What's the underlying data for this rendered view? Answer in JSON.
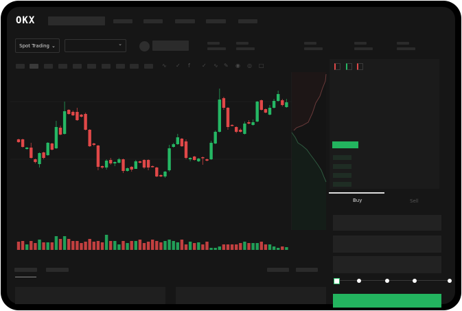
{
  "header": {
    "logo": "OKX"
  },
  "toolbar": {
    "spot_trading_label": "Spot Trading",
    "chevron": "chevron-down-icon"
  },
  "trade_form": {
    "tabs": [
      {
        "label": "Buy",
        "active": true
      },
      {
        "label": "Sell",
        "active": false
      }
    ],
    "slider_value_percent": 0
  },
  "colors": {
    "up": "#25b764",
    "down": "#e04848",
    "background": "#161616",
    "frame": "#000000",
    "panel": "#1b1b1b"
  },
  "chart_data": {
    "type": "candlestick",
    "title": "",
    "grid": true,
    "candles": [
      [
        97,
        98,
        92,
        93
      ],
      [
        97,
        98,
        85,
        86
      ],
      [
        83,
        86,
        82,
        85
      ],
      [
        85,
        92,
        69,
        70
      ],
      [
        68,
        69,
        62,
        64
      ],
      [
        61,
        78,
        56,
        77
      ],
      [
        78,
        79,
        68,
        70
      ],
      [
        74,
        93,
        73,
        92
      ],
      [
        91,
        92,
        81,
        82
      ],
      [
        84,
        124,
        83,
        115
      ],
      [
        114,
        117,
        103,
        104
      ],
      [
        105,
        152,
        104,
        138
      ],
      [
        140,
        141,
        133,
        134
      ],
      [
        137,
        139,
        131,
        132
      ],
      [
        137,
        143,
        124,
        125
      ],
      [
        133,
        134,
        129,
        130
      ],
      [
        134,
        136,
        110,
        111
      ],
      [
        111,
        112,
        86,
        87
      ],
      [
        91,
        92,
        87,
        89
      ],
      [
        88,
        89,
        52,
        57
      ],
      [
        58,
        59,
        54,
        56
      ],
      [
        56,
        68,
        53,
        66
      ],
      [
        67,
        70,
        60,
        62
      ],
      [
        62,
        65,
        58,
        64
      ],
      [
        63,
        70,
        62,
        68
      ],
      [
        68,
        69,
        48,
        51
      ],
      [
        51,
        56,
        50,
        55
      ],
      [
        57,
        58,
        50,
        53
      ],
      [
        54,
        67,
        54,
        65
      ],
      [
        65,
        66,
        62,
        63
      ],
      [
        67,
        68,
        54,
        56
      ],
      [
        67,
        68,
        52,
        56
      ],
      [
        58,
        59,
        56,
        57
      ],
      [
        56,
        57,
        42,
        43
      ],
      [
        45,
        46,
        42,
        43
      ],
      [
        43,
        51,
        41,
        50
      ],
      [
        52,
        89,
        50,
        84
      ],
      [
        86,
        92,
        85,
        90
      ],
      [
        90,
        105,
        89,
        100
      ],
      [
        98,
        99,
        86,
        87
      ],
      [
        94,
        97,
        68,
        70
      ],
      [
        68,
        71,
        65,
        70
      ],
      [
        72,
        73,
        66,
        67
      ],
      [
        65,
        70,
        64,
        69
      ],
      [
        71,
        72,
        60,
        70
      ],
      [
        68,
        69,
        65,
        66
      ],
      [
        68,
        95,
        67,
        92
      ],
      [
        91,
        110,
        90,
        108
      ],
      [
        108,
        171,
        107,
        155
      ],
      [
        157,
        159,
        140,
        143
      ],
      [
        143,
        144,
        111,
        115
      ],
      [
        118,
        119,
        116,
        117
      ],
      [
        115,
        116,
        106,
        108
      ],
      [
        111,
        113,
        107,
        108
      ],
      [
        105,
        123,
        104,
        120
      ],
      [
        122,
        125,
        119,
        120
      ],
      [
        118,
        126,
        117,
        122
      ],
      [
        123,
        153,
        122,
        152
      ],
      [
        154,
        155,
        139,
        140
      ],
      [
        141,
        142,
        135,
        136
      ],
      [
        133,
        147,
        132,
        143
      ],
      [
        143,
        156,
        142,
        153
      ],
      [
        153,
        168,
        152,
        163
      ],
      [
        154,
        156,
        145,
        147
      ],
      [
        144,
        156,
        143,
        151
      ]
    ],
    "volume": [
      12,
      13,
      8,
      13,
      10,
      15,
      11,
      11,
      11,
      20,
      16,
      20,
      16,
      13,
      13,
      10,
      12,
      16,
      12,
      13,
      11,
      22,
      13,
      13,
      8,
      13,
      10,
      13,
      13,
      15,
      10,
      12,
      15,
      13,
      11,
      13,
      15,
      13,
      11,
      15,
      8,
      12,
      10,
      11,
      8,
      12,
      3,
      3,
      5,
      8,
      8,
      8,
      8,
      10,
      12,
      10,
      10,
      10,
      12,
      8,
      8,
      5,
      3,
      5,
      4
    ]
  }
}
